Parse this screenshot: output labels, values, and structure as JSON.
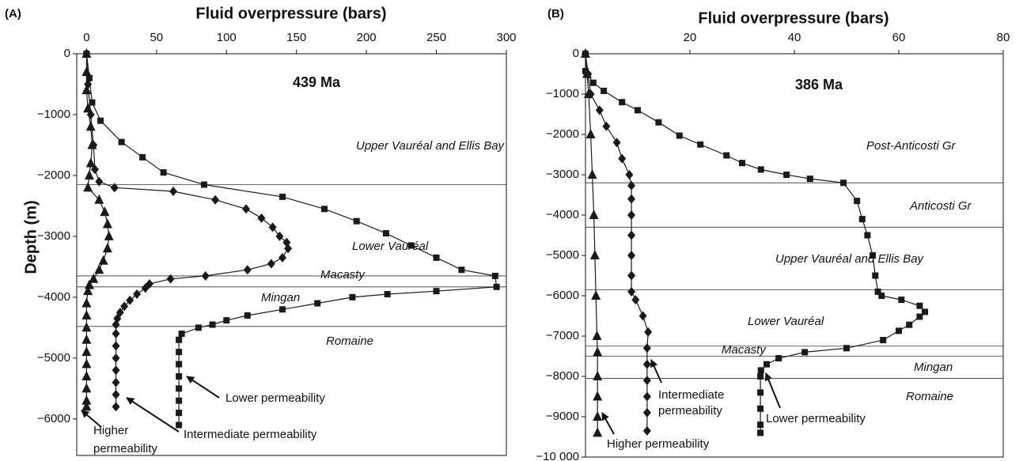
{
  "chart_data": [
    {
      "type": "scatter",
      "panel_label": "(A)",
      "xlabel": "Fluid overpressure (bars)",
      "ylabel": "Depth (m)",
      "xlim": [
        -7,
        300
      ],
      "xticks": [
        0,
        50,
        100,
        150,
        200,
        250,
        300
      ],
      "ylim": [
        -6600,
        0
      ],
      "yticks": [
        0,
        {
          "value": -1000,
          "label": "−1000"
        },
        {
          "value": -2000,
          "label": "−2000"
        },
        {
          "value": -3000,
          "label": "−3000"
        },
        {
          "value": -4000,
          "label": "−4000"
        },
        {
          "value": -5000,
          "label": "−5000"
        },
        {
          "value": -6000,
          "label": "−6000"
        }
      ],
      "boundaries": [
        -2150,
        -3650,
        -3830,
        -4480
      ],
      "series": [
        {
          "marker": "square",
          "color": "#1a1a1a",
          "x": [
            0,
            2,
            4,
            10,
            25,
            40,
            55,
            84,
            140,
            170,
            193,
            214,
            232,
            250,
            268,
            292,
            293,
            250,
            215,
            190,
            165,
            140,
            115,
            100,
            90,
            80,
            68,
            66,
            66,
            66,
            66,
            66,
            66,
            66,
            66
          ],
          "y": [
            0,
            -400,
            -800,
            -1100,
            -1450,
            -1700,
            -1950,
            -2150,
            -2350,
            -2550,
            -2750,
            -2950,
            -3150,
            -3350,
            -3550,
            -3650,
            -3830,
            -3900,
            -3950,
            -4000,
            -4100,
            -4200,
            -4300,
            -4380,
            -4450,
            -4500,
            -4600,
            -4700,
            -4900,
            -5100,
            -5300,
            -5500,
            -5700,
            -5900,
            -6100
          ]
        },
        {
          "marker": "diamond",
          "color": "#1a1a1a",
          "x": [
            0,
            1,
            3,
            5,
            6,
            9,
            20,
            62,
            92,
            114,
            125,
            133,
            138,
            143,
            144,
            140,
            132,
            115,
            85,
            60,
            45,
            42,
            36,
            31,
            27,
            24,
            22,
            21,
            21,
            21,
            21,
            21,
            21,
            21,
            21
          ],
          "y": [
            0,
            -500,
            -1000,
            -1500,
            -1900,
            -2100,
            -2200,
            -2260,
            -2400,
            -2550,
            -2700,
            -2850,
            -3000,
            -3100,
            -3200,
            -3350,
            -3450,
            -3550,
            -3650,
            -3700,
            -3780,
            -3850,
            -3950,
            -4050,
            -4150,
            -4250,
            -4350,
            -4450,
            -4600,
            -4800,
            -5000,
            -5200,
            -5400,
            -5600,
            -5800
          ]
        },
        {
          "marker": "triangle",
          "color": "#1a1a1a",
          "x": [
            0,
            0,
            0,
            1,
            3,
            4,
            3,
            2,
            1,
            9,
            13,
            15,
            16,
            15,
            12,
            9,
            5,
            2,
            1,
            0,
            0,
            0,
            0,
            0,
            0,
            0,
            0,
            0,
            0
          ],
          "y": [
            0,
            -300,
            -600,
            -900,
            -1200,
            -1500,
            -1800,
            -2000,
            -2200,
            -2400,
            -2600,
            -2800,
            -3000,
            -3200,
            -3400,
            -3550,
            -3700,
            -3800,
            -3900,
            -4100,
            -4300,
            -4500,
            -4700,
            -4900,
            -5100,
            -5300,
            -5500,
            -5700,
            -5800
          ]
        }
      ],
      "annotations": [
        "439 Ma",
        "Upper Vauréal and Ellis Bay",
        "Lower Vauréal",
        "Macasty",
        "Mingan",
        "Romaine",
        "Lower permeability",
        "Intermediate permeability",
        "Higher",
        "permeability"
      ]
    },
    {
      "type": "scatter",
      "panel_label": "(B)",
      "xlabel": "Fluid overpressure (bars)",
      "xlim": [
        0,
        80
      ],
      "xticks": [
        20,
        40,
        60,
        80
      ],
      "ylim": [
        -10000,
        0
      ],
      "yticks": [
        0,
        {
          "value": -1000,
          "label": "−1000"
        },
        {
          "value": -2000,
          "label": "−2000"
        },
        {
          "value": -3000,
          "label": "−3000"
        },
        {
          "value": -4000,
          "label": "−4000"
        },
        {
          "value": -5000,
          "label": "−5000"
        },
        {
          "value": -6000,
          "label": "−6000"
        },
        {
          "value": -7000,
          "label": "−7000"
        },
        {
          "value": -8000,
          "label": "−8000"
        },
        {
          "value": -9000,
          "label": "−9000"
        },
        {
          "value": -10000,
          "label": "−10 000"
        }
      ],
      "boundaries": [
        -3200,
        -4300,
        -5850,
        -7250,
        -7500,
        -8050
      ],
      "series": [
        {
          "marker": "square",
          "color": "#1a1a1a",
          "x": [
            0,
            0,
            1.5,
            3.5,
            7,
            10,
            14,
            18,
            22,
            27,
            30,
            33.6,
            38.5,
            43,
            49.4,
            52,
            53,
            54,
            55,
            55.5,
            56,
            56.7,
            60.5,
            64,
            65,
            64,
            62,
            60,
            57,
            50,
            42,
            37,
            34.7,
            33.6,
            33.5,
            33.5,
            33.5,
            33.5,
            33.5
          ],
          "y": [
            0,
            -430,
            -720,
            -920,
            -1200,
            -1400,
            -1700,
            -2030,
            -2250,
            -2520,
            -2710,
            -2870,
            -3000,
            -3100,
            -3200,
            -3650,
            -4100,
            -4500,
            -5000,
            -5500,
            -5900,
            -6000,
            -6100,
            -6250,
            -6400,
            -6520,
            -6720,
            -6870,
            -7100,
            -7300,
            -7400,
            -7550,
            -7700,
            -7850,
            -8000,
            -8400,
            -8800,
            -9200,
            -9400
          ]
        },
        {
          "marker": "diamond",
          "color": "#1a1a1a",
          "x": [
            0,
            0.5,
            1,
            2.7,
            4,
            6,
            7,
            8.4,
            8.8,
            8.8,
            8.8,
            8.8,
            8.8,
            8.8,
            8.8,
            9.6,
            11,
            12,
            11.8,
            11.8,
            11.8,
            11.8,
            11.8,
            11.8
          ],
          "y": [
            0,
            -500,
            -1000,
            -1400,
            -1800,
            -2200,
            -2600,
            -3000,
            -3270,
            -3600,
            -4000,
            -4500,
            -5000,
            -5500,
            -5900,
            -6100,
            -6500,
            -6900,
            -7300,
            -7700,
            -8100,
            -8500,
            -8900,
            -9350
          ]
        },
        {
          "marker": "triangle",
          "color": "#1a1a1a",
          "x": [
            0,
            0.3,
            0.6,
            1,
            1.3,
            1.6,
            1.8,
            2,
            2.2,
            2.3,
            2.3,
            2.3,
            2.3,
            2.3
          ],
          "y": [
            0,
            -500,
            -1000,
            -2000,
            -3000,
            -4000,
            -5000,
            -6000,
            -7000,
            -7400,
            -8000,
            -8500,
            -9000,
            -9400
          ]
        }
      ],
      "annotations": [
        "386 Ma",
        "Post-Anticosti Gr",
        "Anticosti Gr",
        "Upper Vauréal and Ellis Bay",
        "Lower Vauréal",
        "Macasty",
        "Mingan",
        "Romaine",
        "Intermediate",
        "permeability",
        "Lower permeability",
        "Higher permeability"
      ]
    }
  ]
}
